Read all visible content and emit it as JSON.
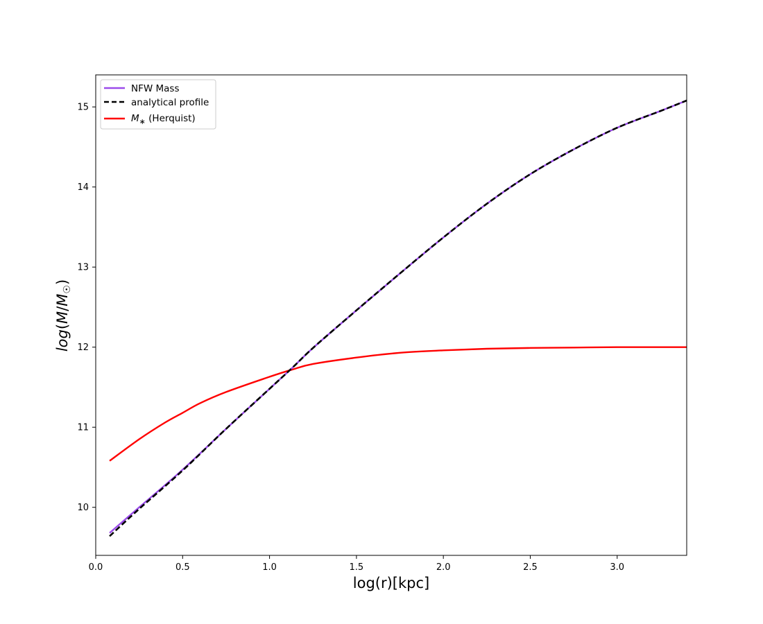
{
  "chart_data": {
    "type": "line",
    "title": "",
    "xlabel": "log(r)[kpc]",
    "ylabel": "log(M/M☉)",
    "xlim": [
      0.0,
      3.4
    ],
    "ylim": [
      9.4,
      15.4
    ],
    "xticks": [
      0.0,
      0.5,
      1.0,
      1.5,
      2.0,
      2.5,
      3.0
    ],
    "xtick_labels": [
      "0.0",
      "0.5",
      "1.0",
      "1.5",
      "2.0",
      "2.5",
      "3.0"
    ],
    "yticks": [
      10,
      11,
      12,
      13,
      14,
      15
    ],
    "ytick_labels": [
      "10",
      "11",
      "12",
      "13",
      "14",
      "15"
    ],
    "grid": false,
    "legend_position": "upper-left",
    "legend": [
      {
        "label": "NFW Mass",
        "style": "solid",
        "color": "#9b4bea"
      },
      {
        "label": "analytical profile",
        "style": "dashed",
        "color": "#000000"
      },
      {
        "label_math": "M",
        "label_math_sub": "∗",
        "label_rest": " (Herquist)",
        "style": "solid",
        "color": "#ff0000"
      }
    ],
    "series": [
      {
        "name": "NFW Mass",
        "color": "#9b4bea",
        "style": "solid",
        "x": [
          0.08,
          0.25,
          0.5,
          0.75,
          1.0,
          1.13,
          1.25,
          1.5,
          1.75,
          2.0,
          2.25,
          2.5,
          2.75,
          3.0,
          3.25,
          3.4
        ],
        "y": [
          9.68,
          10.0,
          10.47,
          10.98,
          11.48,
          11.74,
          11.99,
          12.46,
          12.92,
          13.37,
          13.79,
          14.16,
          14.47,
          14.74,
          14.95,
          15.08
        ]
      },
      {
        "name": "analytical profile",
        "color": "#000000",
        "style": "dashed",
        "x": [
          0.08,
          0.25,
          0.5,
          0.75,
          1.0,
          1.13,
          1.25,
          1.5,
          1.75,
          2.0,
          2.25,
          2.5,
          2.75,
          3.0,
          3.25,
          3.4
        ],
        "y": [
          9.64,
          9.98,
          10.46,
          10.98,
          11.48,
          11.74,
          11.99,
          12.46,
          12.92,
          13.37,
          13.79,
          14.16,
          14.47,
          14.74,
          14.95,
          15.08
        ]
      },
      {
        "name": "M∗ (Herquist)",
        "color": "#ff0000",
        "style": "solid",
        "x": [
          0.08,
          0.25,
          0.4,
          0.5,
          0.6,
          0.75,
          1.0,
          1.13,
          1.25,
          1.5,
          1.75,
          2.0,
          2.25,
          2.5,
          2.75,
          3.0,
          3.4
        ],
        "y": [
          10.58,
          10.85,
          11.06,
          11.18,
          11.3,
          11.44,
          11.63,
          11.72,
          11.79,
          11.87,
          11.93,
          11.96,
          11.98,
          11.99,
          11.995,
          12.0,
          12.0
        ]
      }
    ]
  }
}
